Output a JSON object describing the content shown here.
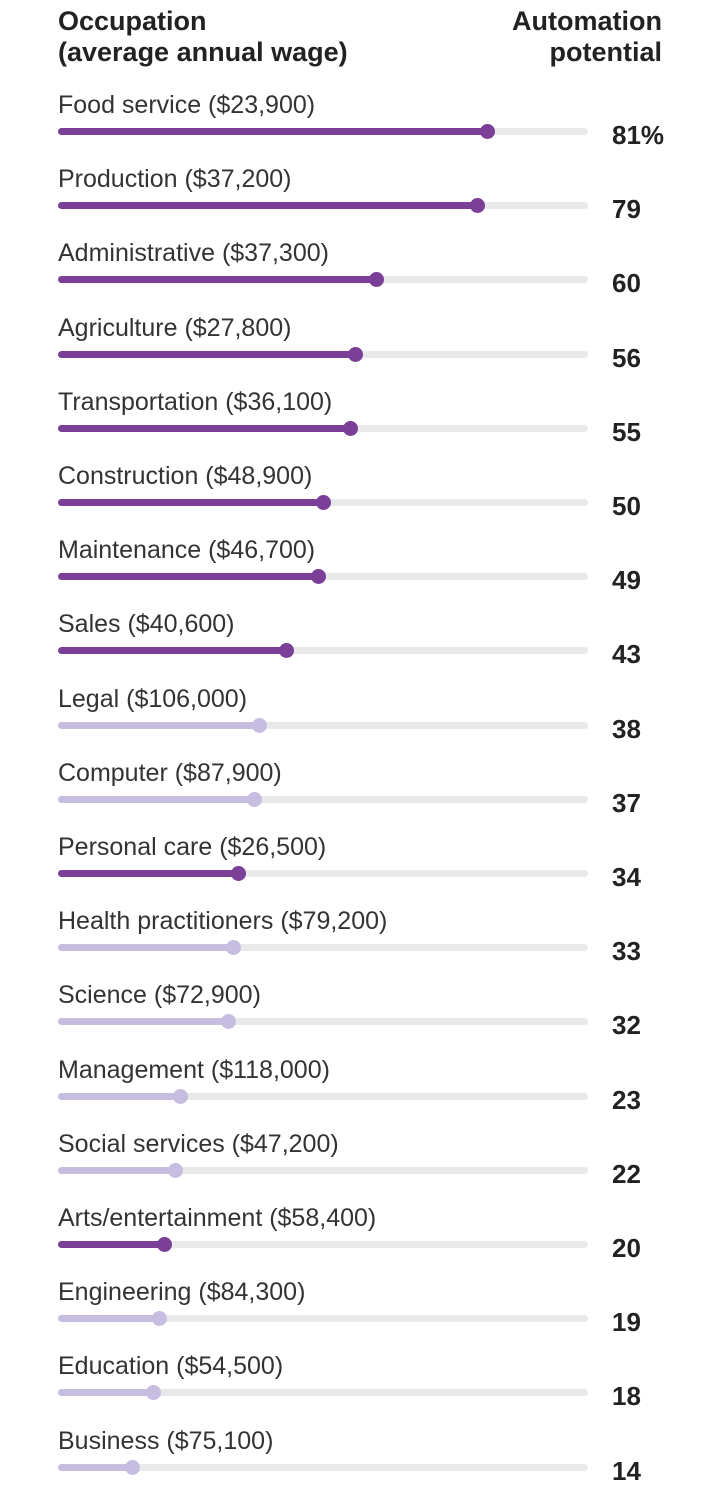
{
  "chart_data": {
    "type": "bar",
    "header": {
      "left_line1": "Occupation",
      "left_line2": "(average annual wage)",
      "right_line1": "Automation",
      "right_line2": "potential"
    },
    "categories": [
      "Food service ($23,900)",
      "Production ($37,200)",
      "Administrative ($37,300)",
      "Agriculture ($27,800)",
      "Transportation ($36,100)",
      "Construction ($48,900)",
      "Maintenance ($46,700)",
      "Sales ($40,600)",
      "Legal ($106,000)",
      "Computer ($87,900)",
      "Personal care ($26,500)",
      "Health practitioners ($79,200)",
      "Science ($72,900)",
      "Management ($118,000)",
      "Social services ($47,200)",
      "Arts/entertainment ($58,400)",
      "Engineering ($84,300)",
      "Education ($54,500)",
      "Business ($75,100)"
    ],
    "values": [
      81,
      79,
      60,
      56,
      55,
      50,
      49,
      43,
      38,
      37,
      34,
      33,
      32,
      23,
      22,
      20,
      19,
      18,
      14
    ],
    "value_labels": [
      "81%",
      "79",
      "60",
      "56",
      "55",
      "50",
      "49",
      "43",
      "38",
      "37",
      "34",
      "33",
      "32",
      "23",
      "22",
      "20",
      "19",
      "18",
      "14"
    ],
    "highlight": [
      true,
      true,
      true,
      true,
      true,
      true,
      true,
      true,
      false,
      false,
      true,
      false,
      false,
      false,
      false,
      true,
      false,
      false,
      false
    ],
    "xlim": [
      0,
      100
    ],
    "colors": {
      "highlight": "#7b3f98",
      "muted": "#c6bde0",
      "track": "#e9e9ec"
    }
  }
}
